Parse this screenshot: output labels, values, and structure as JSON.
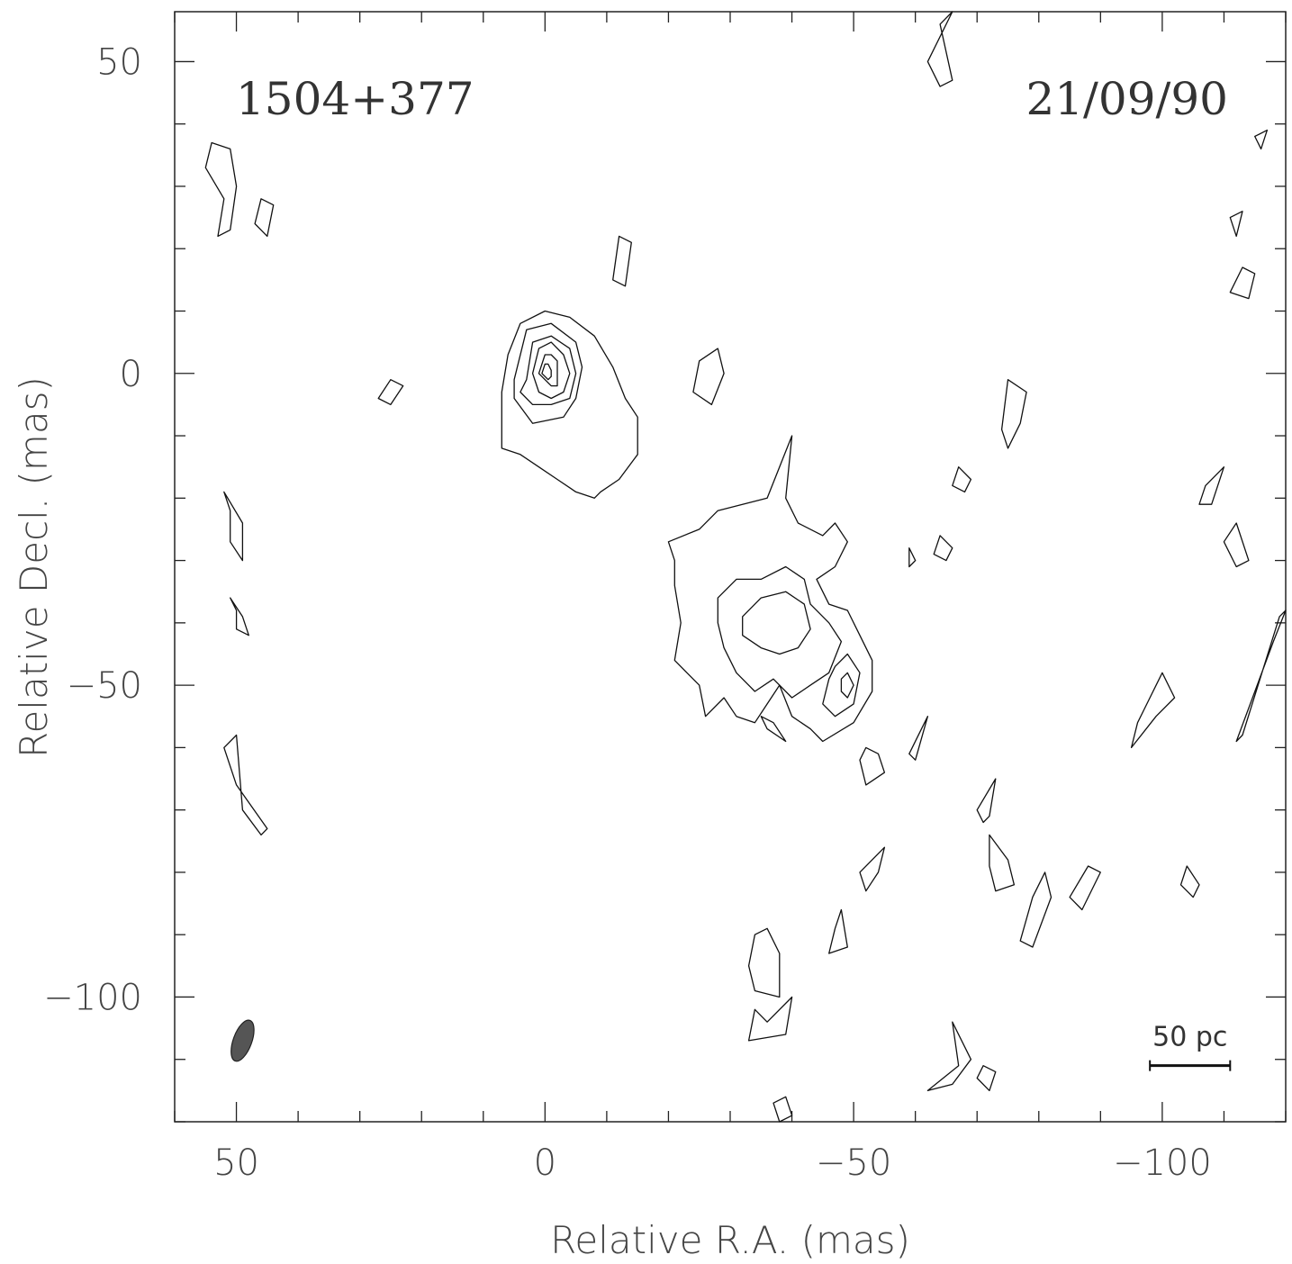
{
  "chart_data": {
    "type": "contour",
    "source_label": "1504+377",
    "date_label": "21/09/90",
    "xlabel": "Relative R.A. (mas)",
    "ylabel": "Relative Decl. (mas)",
    "xlim": [
      60,
      -120
    ],
    "ylim": [
      -120,
      58
    ],
    "x_ticks": [
      {
        "value": 50,
        "label": "50"
      },
      {
        "value": 0,
        "label": "0"
      },
      {
        "value": -50,
        "label": "−50"
      },
      {
        "value": -100,
        "label": "−100"
      }
    ],
    "y_ticks": [
      {
        "value": 50,
        "label": "50"
      },
      {
        "value": 0,
        "label": "0"
      },
      {
        "value": -50,
        "label": "−50"
      },
      {
        "value": -100,
        "label": "−100"
      }
    ],
    "x_minor_step": 10,
    "y_minor_step": 10,
    "beam": {
      "x": 49,
      "y": -107,
      "major_mas": 7,
      "minor_mas": 3,
      "pa_deg": 20
    },
    "scale_bar": {
      "label": "50 pc",
      "x_start": -98,
      "x_end": -111,
      "y": -111
    },
    "core": {
      "x": 0,
      "y": 0,
      "contours": [
        [
          [
            5,
            -1
          ],
          [
            3,
            7
          ],
          [
            -1,
            8
          ],
          [
            -5,
            5
          ],
          [
            -6,
            1
          ],
          [
            -5,
            -4
          ],
          [
            -3,
            -7
          ],
          [
            2,
            -8
          ],
          [
            5,
            -4
          ]
        ],
        [
          [
            3,
            -1
          ],
          [
            2,
            5
          ],
          [
            -1,
            6
          ],
          [
            -4,
            4
          ],
          [
            -5,
            0
          ],
          [
            -4,
            -4
          ],
          [
            -1,
            -5
          ],
          [
            2,
            -5
          ],
          [
            4,
            -3
          ]
        ],
        [
          [
            2,
            0
          ],
          [
            1,
            4
          ],
          [
            -1,
            5
          ],
          [
            -3,
            3
          ],
          [
            -4,
            0
          ],
          [
            -3,
            -3
          ],
          [
            -1,
            -4
          ],
          [
            1,
            -3
          ]
        ],
        [
          [
            1,
            0
          ],
          [
            0,
            3
          ],
          [
            -1,
            3
          ],
          [
            -2,
            2
          ],
          [
            -2,
            0
          ],
          [
            -2,
            -2
          ],
          [
            -1,
            -2
          ],
          [
            0,
            -1
          ]
        ],
        [
          [
            0.5,
            0
          ],
          [
            0,
            1.5
          ],
          [
            -0.5,
            1.5
          ],
          [
            -1,
            0.5
          ],
          [
            -1,
            -0.5
          ],
          [
            -0.5,
            -1
          ],
          [
            0,
            -0.5
          ]
        ]
      ]
    },
    "outer_envelope": [
      [
        7,
        -3
      ],
      [
        6,
        3
      ],
      [
        4,
        8
      ],
      [
        0,
        10
      ],
      [
        -4,
        9
      ],
      [
        -8,
        6
      ],
      [
        -11,
        1
      ],
      [
        -13,
        -4
      ],
      [
        -15,
        -7
      ],
      [
        -15,
        -13
      ],
      [
        -12,
        -17
      ],
      [
        -9,
        -19
      ],
      [
        -8,
        -20
      ],
      [
        -5,
        -19
      ],
      [
        -2,
        -17
      ],
      [
        1,
        -15
      ],
      [
        4,
        -13
      ],
      [
        7,
        -12
      ],
      [
        7,
        -8
      ]
    ],
    "jet_components": [
      [
        [
          -20,
          -27
        ],
        [
          -25,
          -25
        ],
        [
          -28,
          -22
        ],
        [
          -32,
          -21
        ],
        [
          -36,
          -20
        ],
        [
          -38,
          -15
        ],
        [
          -40,
          -10
        ],
        [
          -39,
          -20
        ],
        [
          -41,
          -24
        ],
        [
          -45,
          -26
        ],
        [
          -47,
          -24
        ],
        [
          -49,
          -27
        ],
        [
          -47,
          -31
        ],
        [
          -44,
          -33
        ],
        [
          -46,
          -37
        ],
        [
          -49,
          -38
        ],
        [
          -51,
          -42
        ],
        [
          -53,
          -46
        ],
        [
          -53,
          -51
        ],
        [
          -50,
          -56
        ],
        [
          -45,
          -59
        ],
        [
          -43,
          -57
        ],
        [
          -40,
          -55
        ],
        [
          -38,
          -50
        ],
        [
          -36,
          -53
        ],
        [
          -34,
          -56
        ],
        [
          -31,
          -55
        ],
        [
          -29,
          -52
        ],
        [
          -26,
          -55
        ],
        [
          -25,
          -50
        ],
        [
          -23,
          -48
        ],
        [
          -21,
          -46
        ],
        [
          -22,
          -40
        ],
        [
          -21,
          -34
        ],
        [
          -21,
          -30
        ]
      ],
      [
        [
          -28,
          -36
        ],
        [
          -31,
          -33
        ],
        [
          -35,
          -33
        ],
        [
          -39,
          -31
        ],
        [
          -42,
          -33
        ],
        [
          -43,
          -37
        ],
        [
          -46,
          -40
        ],
        [
          -48,
          -43
        ],
        [
          -46,
          -48
        ],
        [
          -43,
          -50
        ],
        [
          -40,
          -52
        ],
        [
          -37,
          -49
        ],
        [
          -34,
          -51
        ],
        [
          -31,
          -48
        ],
        [
          -29,
          -44
        ],
        [
          -28,
          -40
        ]
      ],
      [
        [
          -32,
          -39
        ],
        [
          -35,
          -36
        ],
        [
          -39,
          -35
        ],
        [
          -42,
          -37
        ],
        [
          -43,
          -41
        ],
        [
          -41,
          -44
        ],
        [
          -38,
          -45
        ],
        [
          -35,
          -44
        ],
        [
          -32,
          -42
        ]
      ],
      [
        [
          -47,
          -47
        ],
        [
          -49,
          -45
        ],
        [
          -51,
          -48
        ],
        [
          -50,
          -53
        ],
        [
          -47,
          -55
        ],
        [
          -45,
          -53
        ],
        [
          -46,
          -49
        ]
      ],
      [
        [
          -48,
          -49
        ],
        [
          -49,
          -48
        ],
        [
          -50,
          -50
        ],
        [
          -49,
          -52
        ],
        [
          -48,
          -51
        ]
      ]
    ],
    "noise_blobs": [
      [
        [
          52,
          28
        ],
        [
          55,
          33
        ],
        [
          54,
          37
        ],
        [
          51,
          36
        ],
        [
          50,
          30
        ],
        [
          51,
          23
        ],
        [
          53,
          22
        ]
      ],
      [
        [
          44,
          27
        ],
        [
          46,
          28
        ],
        [
          47,
          24
        ],
        [
          45,
          22
        ]
      ],
      [
        [
          -12,
          22
        ],
        [
          -14,
          21
        ],
        [
          -13,
          14
        ],
        [
          -11,
          15
        ]
      ],
      [
        [
          -27,
          -5
        ],
        [
          -29,
          0
        ],
        [
          -28,
          4
        ],
        [
          -25,
          2
        ],
        [
          -24,
          -3
        ]
      ],
      [
        [
          25,
          -5
        ],
        [
          23,
          -2
        ],
        [
          25,
          -1
        ],
        [
          27,
          -4
        ]
      ],
      [
        [
          -75,
          -12
        ],
        [
          -77,
          -8
        ],
        [
          -78,
          -3
        ],
        [
          -75,
          -1
        ],
        [
          -74,
          -9
        ]
      ],
      [
        [
          51,
          -22
        ],
        [
          52,
          -19
        ],
        [
          49,
          -24
        ],
        [
          49,
          -30
        ],
        [
          51,
          -27
        ]
      ],
      [
        [
          50,
          -38
        ],
        [
          51,
          -36
        ],
        [
          49,
          -39
        ],
        [
          48,
          -42
        ],
        [
          50,
          -41
        ]
      ],
      [
        [
          52,
          -60
        ],
        [
          50,
          -58
        ],
        [
          49,
          -70
        ],
        [
          46,
          -74
        ],
        [
          45,
          -73
        ],
        [
          50,
          -66
        ]
      ],
      [
        [
          -102,
          -52
        ],
        [
          -100,
          -48
        ],
        [
          -96,
          -56
        ],
        [
          -95,
          -60
        ],
        [
          -99,
          -55
        ]
      ],
      [
        [
          -112,
          -59
        ],
        [
          -118,
          -43
        ],
        [
          -120,
          -38
        ],
        [
          -119,
          -39
        ],
        [
          -113,
          -58
        ]
      ],
      [
        [
          -52,
          -60
        ],
        [
          -54,
          -61
        ],
        [
          -55,
          -64
        ],
        [
          -52,
          -66
        ],
        [
          -51,
          -62
        ]
      ],
      [
        [
          -59,
          -61
        ],
        [
          -61,
          -57
        ],
        [
          -62,
          -55
        ],
        [
          -60,
          -62
        ]
      ],
      [
        [
          -70,
          -70
        ],
        [
          -73,
          -65
        ],
        [
          -72,
          -71
        ],
        [
          -71,
          -72
        ]
      ],
      [
        [
          -72,
          -74
        ],
        [
          -75,
          -78
        ],
        [
          -76,
          -82
        ],
        [
          -73,
          -83
        ],
        [
          -72,
          -79
        ]
      ],
      [
        [
          -79,
          -84
        ],
        [
          -81,
          -80
        ],
        [
          -82,
          -84
        ],
        [
          -79,
          -92
        ],
        [
          -77,
          -91
        ]
      ],
      [
        [
          -55,
          -76
        ],
        [
          -54,
          -80
        ],
        [
          -52,
          -83
        ],
        [
          -51,
          -80
        ]
      ],
      [
        [
          -48,
          -86
        ],
        [
          -47,
          -89
        ],
        [
          -46,
          -93
        ],
        [
          -49,
          -92
        ]
      ],
      [
        [
          -36,
          -89
        ],
        [
          -38,
          -93
        ],
        [
          -38,
          -100
        ],
        [
          -34,
          -99
        ],
        [
          -33,
          -95
        ],
        [
          -34,
          -90
        ]
      ],
      [
        [
          -34,
          -102
        ],
        [
          -36,
          -104
        ],
        [
          -40,
          -100
        ],
        [
          -39,
          -106
        ],
        [
          -33,
          -107
        ]
      ],
      [
        [
          -39,
          -116
        ],
        [
          -40,
          -119
        ],
        [
          -38,
          -120
        ],
        [
          -37,
          -117
        ]
      ],
      [
        [
          -66,
          -104
        ],
        [
          -69,
          -110
        ],
        [
          -66,
          -114
        ],
        [
          -62,
          -115
        ],
        [
          -67,
          -111
        ]
      ],
      [
        [
          -104,
          -79
        ],
        [
          -103,
          -82
        ],
        [
          -105,
          -84
        ],
        [
          -106,
          -82
        ]
      ],
      [
        [
          -107,
          -18
        ],
        [
          -110,
          -15
        ],
        [
          -108,
          -21
        ],
        [
          -106,
          -21
        ]
      ],
      [
        [
          -110,
          -27
        ],
        [
          -112,
          -24
        ],
        [
          -114,
          -30
        ],
        [
          -112,
          -31
        ]
      ],
      [
        [
          -67,
          -15
        ],
        [
          -69,
          -17
        ],
        [
          -68,
          -19
        ],
        [
          -66,
          -18
        ]
      ],
      [
        [
          -64,
          -26
        ],
        [
          -66,
          -28
        ],
        [
          -65,
          -30
        ],
        [
          -63,
          -29
        ]
      ],
      [
        [
          -59,
          -28
        ],
        [
          -60,
          -30
        ],
        [
          -59,
          -31
        ]
      ],
      [
        [
          -62,
          50
        ],
        [
          -64,
          46
        ],
        [
          -66,
          47
        ],
        [
          -64,
          56
        ],
        [
          -66,
          58
        ]
      ],
      [
        [
          -113,
          26
        ],
        [
          -111,
          25
        ],
        [
          -112,
          22
        ]
      ],
      [
        [
          -111,
          13
        ],
        [
          -114,
          12
        ],
        [
          -115,
          16
        ],
        [
          -113,
          17
        ]
      ],
      [
        [
          -116,
          36
        ],
        [
          -115,
          38
        ],
        [
          -117,
          39
        ]
      ],
      [
        [
          -88,
          -79
        ],
        [
          -85,
          -84
        ],
        [
          -87,
          -86
        ],
        [
          -90,
          -80
        ]
      ],
      [
        [
          -35,
          -55
        ],
        [
          -37,
          -56
        ],
        [
          -39,
          -59
        ],
        [
          -36,
          -57
        ]
      ],
      [
        [
          -71,
          -111
        ],
        [
          -73,
          -112
        ],
        [
          -72,
          -115
        ],
        [
          -70,
          -113
        ]
      ]
    ]
  }
}
